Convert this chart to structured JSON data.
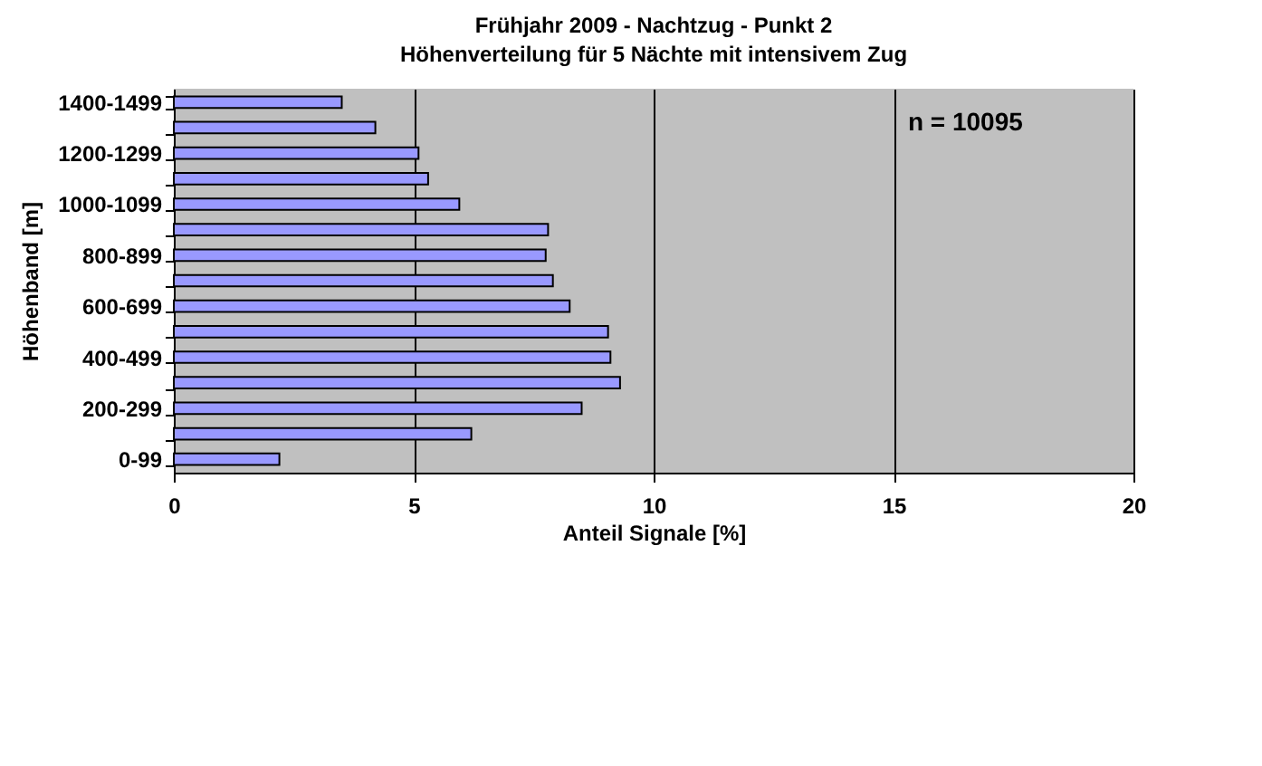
{
  "chart_data": {
    "type": "bar",
    "orientation": "horizontal",
    "title": "Frühjahr 2009 - Nachtzug - Punkt 2",
    "subtitle": "Höhenverteilung für 5 Nächte mit intensivem Zug",
    "xlabel": "Anteil Signale [%]",
    "ylabel": "Höhenband [m]",
    "categories": [
      "1400-1499",
      null,
      "1200-1299",
      null,
      "1000-1099",
      null,
      "800-899",
      null,
      "600-699",
      null,
      "400-499",
      null,
      "200-299",
      null,
      "0-99"
    ],
    "values": [
      3.5,
      4.2,
      5.1,
      5.3,
      5.95,
      7.8,
      7.75,
      7.9,
      8.25,
      9.05,
      9.1,
      9.3,
      8.5,
      6.2,
      2.2
    ],
    "color": "#9999ff",
    "xlim": [
      0,
      20
    ],
    "xticks": [
      0,
      5,
      10,
      15,
      20
    ],
    "grid": "x",
    "annotations": [
      "n = 10095"
    ]
  }
}
